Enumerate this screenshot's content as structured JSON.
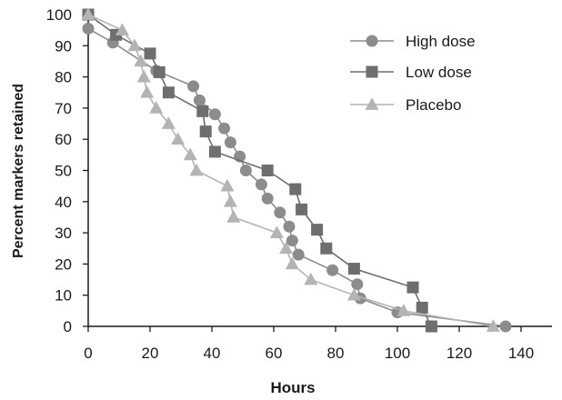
{
  "chart_data": {
    "type": "line",
    "xlabel": "Hours",
    "ylabel": "Percent markers retained",
    "xlim": [
      0,
      150
    ],
    "ylim": [
      0,
      100
    ],
    "xticks": [
      0,
      20,
      40,
      60,
      80,
      100,
      120,
      140
    ],
    "yticks": [
      0,
      10,
      20,
      30,
      40,
      50,
      60,
      70,
      80,
      90,
      100
    ],
    "grid": false,
    "legend_position": "top-right",
    "series": [
      {
        "name": "High dose",
        "marker": "circle",
        "color": "#8c8c8c",
        "points": [
          [
            0,
            95.5
          ],
          [
            8,
            91
          ],
          [
            22,
            82
          ],
          [
            34,
            77
          ],
          [
            36,
            72.5
          ],
          [
            41,
            68
          ],
          [
            44,
            63.5
          ],
          [
            46,
            59
          ],
          [
            49,
            54.5
          ],
          [
            51,
            50
          ],
          [
            56,
            45.5
          ],
          [
            58,
            41
          ],
          [
            62,
            36.5
          ],
          [
            65,
            32
          ],
          [
            66,
            27.5
          ],
          [
            68,
            23
          ],
          [
            79,
            18
          ],
          [
            87,
            13.5
          ],
          [
            88,
            9
          ],
          [
            100,
            4.5
          ],
          [
            135,
            0
          ]
        ]
      },
      {
        "name": "Low dose",
        "marker": "square",
        "color": "#6e6e6e",
        "points": [
          [
            0,
            100
          ],
          [
            9,
            93.5
          ],
          [
            20,
            87.5
          ],
          [
            23,
            81.5
          ],
          [
            26,
            75
          ],
          [
            37,
            69
          ],
          [
            38,
            62.5
          ],
          [
            41,
            56
          ],
          [
            58,
            50
          ],
          [
            67,
            44
          ],
          [
            69,
            37.5
          ],
          [
            74,
            31
          ],
          [
            77,
            25
          ],
          [
            86,
            18.5
          ],
          [
            105,
            12.5
          ],
          [
            108,
            6
          ],
          [
            111,
            0
          ]
        ]
      },
      {
        "name": "Placebo",
        "marker": "triangle",
        "color": "#b4b4b4",
        "points": [
          [
            0,
            100
          ],
          [
            11,
            95
          ],
          [
            15,
            90
          ],
          [
            17,
            85
          ],
          [
            18,
            80
          ],
          [
            19,
            75
          ],
          [
            22,
            70
          ],
          [
            26,
            65
          ],
          [
            29,
            60
          ],
          [
            33,
            55
          ],
          [
            35,
            50
          ],
          [
            45,
            45
          ],
          [
            46,
            40
          ],
          [
            47,
            35
          ],
          [
            61,
            30
          ],
          [
            64,
            25
          ],
          [
            66,
            20
          ],
          [
            72,
            15
          ],
          [
            86,
            10
          ],
          [
            102,
            5
          ],
          [
            131,
            0
          ]
        ]
      }
    ]
  }
}
